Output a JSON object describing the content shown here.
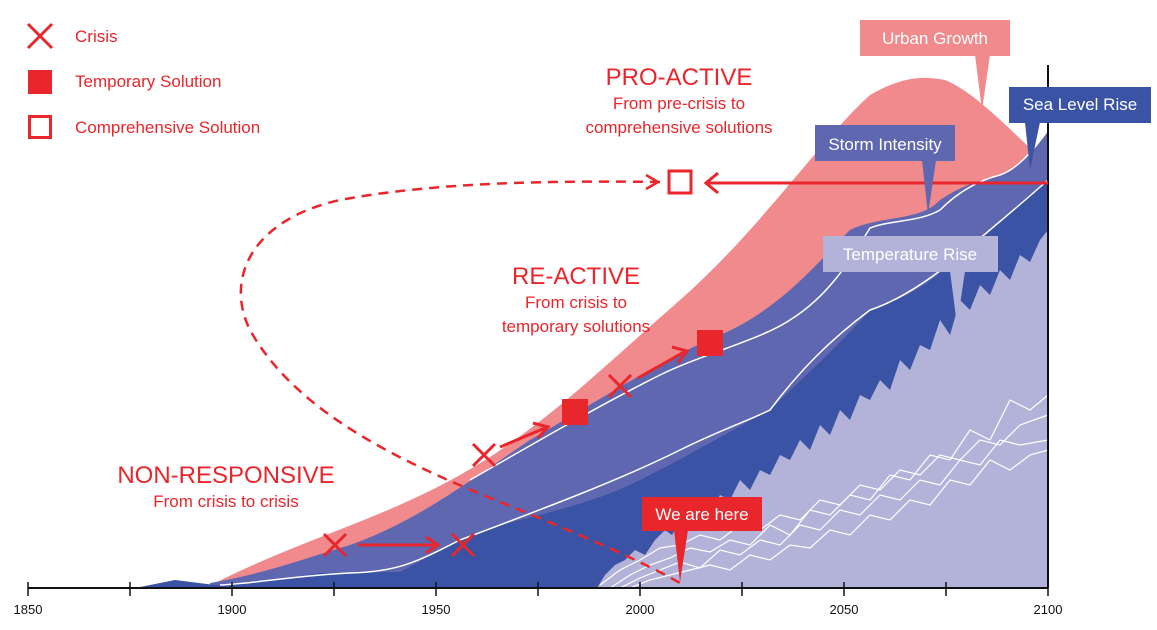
{
  "legend": {
    "crisis": "Crisis",
    "temporary": "Temporary Solution",
    "comprehensive": "Comprehensive Solution"
  },
  "stages": {
    "pro_active": {
      "title": "PRO-ACTIVE",
      "line1": "From pre-crisis to",
      "line2": "comprehensive solutions"
    },
    "re_active": {
      "title": "RE-ACTIVE",
      "line1": "From crisis to",
      "line2": "temporary solutions"
    },
    "non_responsive": {
      "title": "NON-RESPONSIVE",
      "line1": "From crisis to crisis"
    }
  },
  "callouts": {
    "urban_growth": "Urban Growth",
    "sea_level_rise": "Sea Level Rise",
    "storm_intensity": "Storm Intensity",
    "temperature_rise": "Temperature Rise",
    "we_are_here": "We are here"
  },
  "axis": {
    "ticks": [
      "1850",
      "1900",
      "1950",
      "2000",
      "2050",
      "2100"
    ]
  },
  "colors": {
    "red": "#e8262c",
    "urban": "#f08a8c",
    "storm": "#5f67b0",
    "sea": "#3a53a4",
    "temp": "#b3b3d9"
  }
}
